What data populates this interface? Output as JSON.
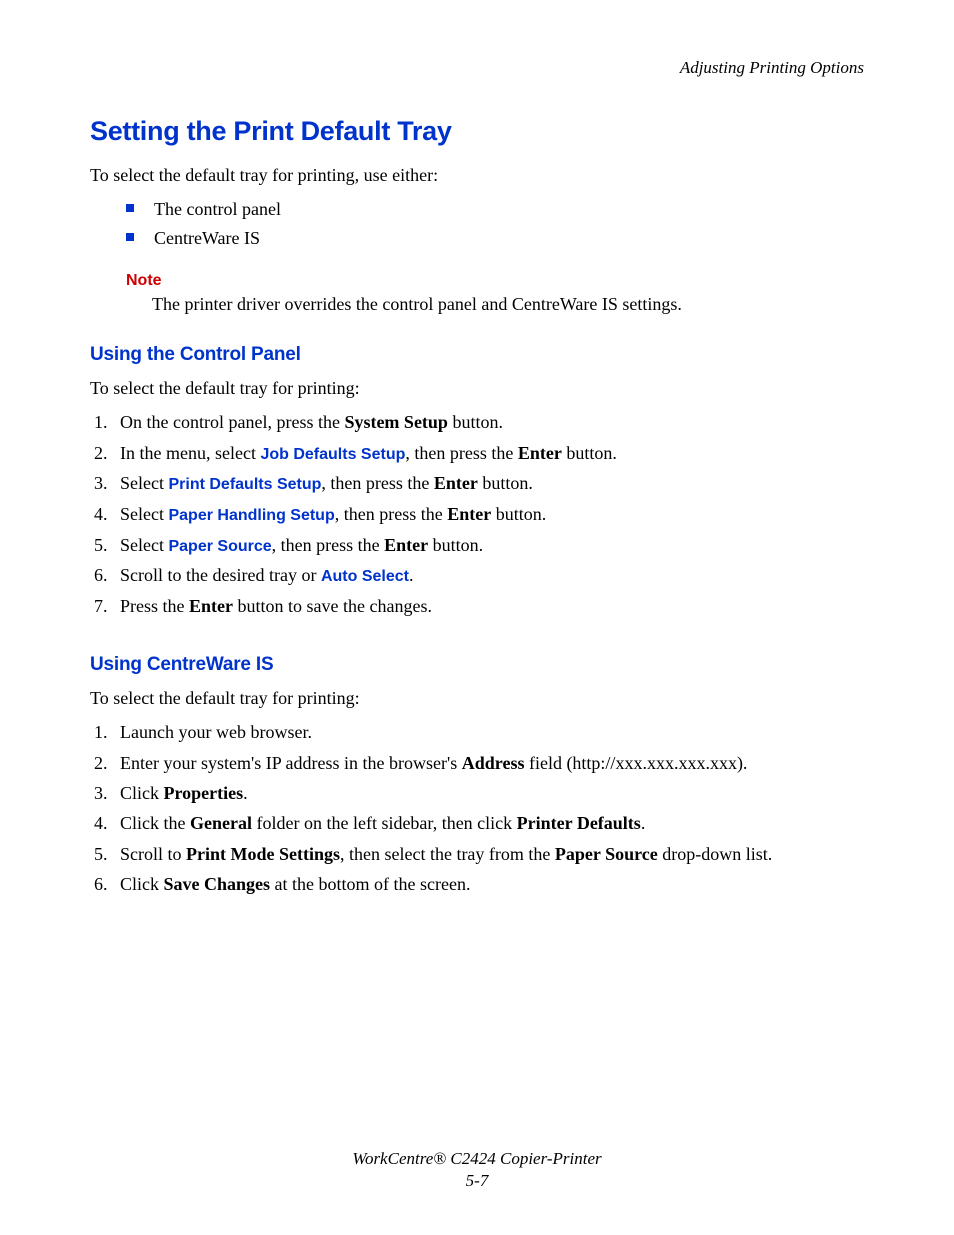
{
  "header": {
    "breadcrumb": "Adjusting Printing Options"
  },
  "title": "Setting the Print Default Tray",
  "intro": "To select the default tray for printing, use either:",
  "bullets": {
    "items": [
      "The control panel",
      "CentreWare IS"
    ]
  },
  "note": {
    "label": "Note",
    "text": "The printer driver overrides the control panel and CentreWare IS settings."
  },
  "section1": {
    "heading": "Using the Control Panel",
    "intro": "To select the default tray for printing:",
    "steps": {
      "s1_prefix": "On the control panel, press the ",
      "s1_bold": "System Setup",
      "s1_suffix": " button.",
      "s2_prefix": "In the menu, select ",
      "s2_link": "Job Defaults Setup",
      "s2_mid": ", then press the ",
      "s2_bold": "Enter",
      "s2_suffix": " button.",
      "s3_prefix": "Select ",
      "s3_link": "Print Defaults Setup",
      "s3_mid": ", then press the ",
      "s3_bold": "Enter",
      "s3_suffix": " button.",
      "s4_prefix": "Select ",
      "s4_link": "Paper Handling Setup",
      "s4_mid": ", then press the ",
      "s4_bold": "Enter",
      "s4_suffix": " button.",
      "s5_prefix": "Select ",
      "s5_link": "Paper Source",
      "s5_mid": ", then press the ",
      "s5_bold": "Enter",
      "s5_suffix": " button.",
      "s6_prefix": "Scroll to the desired tray or ",
      "s6_link": "Auto Select",
      "s6_suffix": ".",
      "s7_prefix": "Press the ",
      "s7_bold": "Enter",
      "s7_suffix": " button to save the changes."
    }
  },
  "section2": {
    "heading": "Using CentreWare IS",
    "intro": "To select the default tray for printing:",
    "steps": {
      "s1": "Launch your web browser.",
      "s2_prefix": "Enter your system's IP address in the browser's ",
      "s2_bold": "Address",
      "s2_suffix": " field (http://xxx.xxx.xxx.xxx).",
      "s3_prefix": "Click ",
      "s3_bold": "Properties",
      "s3_suffix": ".",
      "s4_prefix": "Click the ",
      "s4_bold1": "General",
      "s4_mid": " folder on the left sidebar, then click ",
      "s4_bold2": "Printer Defaults",
      "s4_suffix": ".",
      "s5_prefix": "Scroll to ",
      "s5_bold1": "Print Mode Settings",
      "s5_mid": ", then select the tray from the ",
      "s5_bold2": "Paper Source",
      "s5_suffix": " drop-down list.",
      "s6_prefix": "Click ",
      "s6_bold": "Save Changes",
      "s6_suffix": " at the bottom of the screen."
    }
  },
  "footer": {
    "product": "WorkCentre® C2424 Copier-Printer",
    "page": "5-7"
  }
}
